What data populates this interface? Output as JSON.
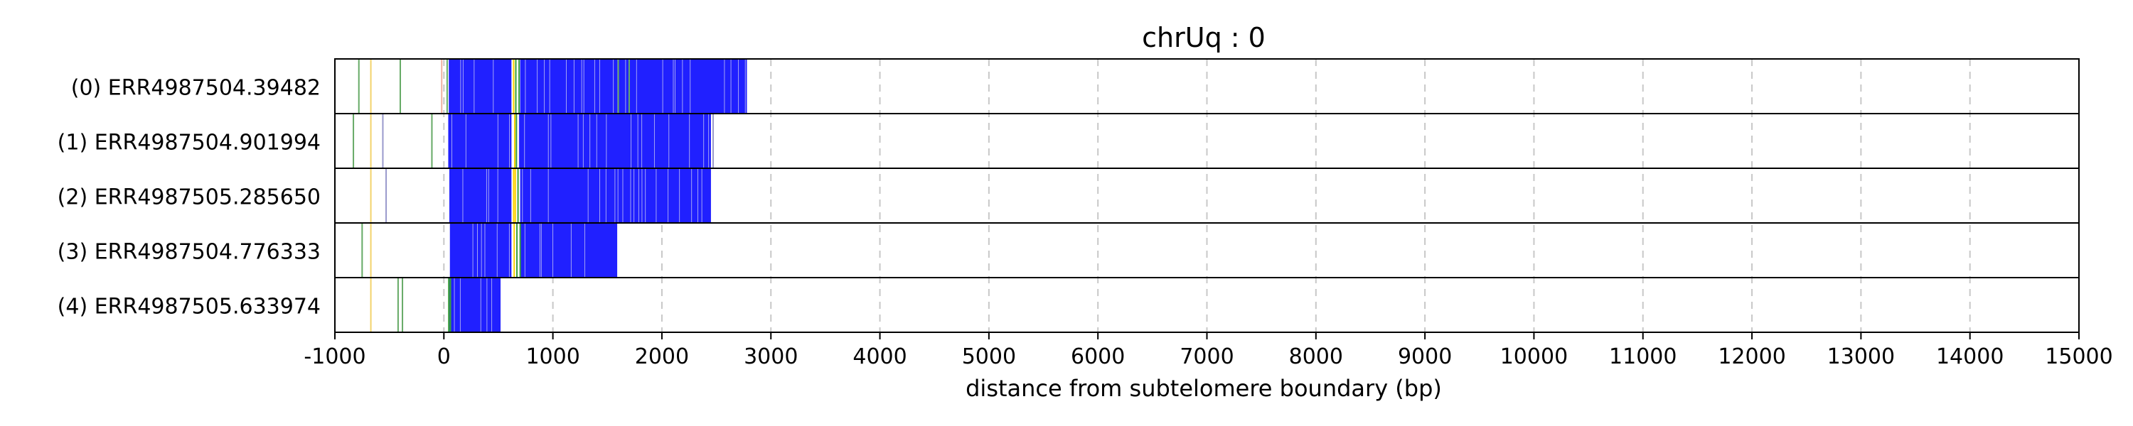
{
  "chart_data": {
    "type": "track-plot",
    "title": "chrUq : 0",
    "xlabel": "distance from subtelomere boundary (bp)",
    "ylabel": "",
    "xlim": [
      -1000,
      15000
    ],
    "xticks": [
      -1000,
      0,
      1000,
      2000,
      3000,
      4000,
      5000,
      6000,
      7000,
      8000,
      9000,
      10000,
      11000,
      12000,
      13000,
      14000,
      15000
    ],
    "grid": "vertical-dashed",
    "tracks": [
      {
        "label": "(0) ERR4987504.39482",
        "dense_start": 45,
        "dense_end": 2780,
        "fill_segments": [
          {
            "start": 45,
            "end": 620,
            "color": "#2020ff"
          },
          {
            "start": 700,
            "end": 2780,
            "color": "#2020ff"
          }
        ],
        "colored_marks": [
          {
            "x": -780,
            "color": "#66aa66"
          },
          {
            "x": -670,
            "color": "#f2d36b"
          },
          {
            "x": -400,
            "color": "#66aa66"
          },
          {
            "x": -20,
            "color": "#f0b0a0"
          },
          {
            "x": 30,
            "color": "#66aa66"
          },
          {
            "x": 640,
            "color": "#ffd000"
          },
          {
            "x": 660,
            "color": "#3aa03a"
          },
          {
            "x": 690,
            "color": "#3aa03a"
          },
          {
            "x": 1600,
            "color": "#66aa66"
          },
          {
            "x": 1700,
            "color": "#66aa66"
          }
        ]
      },
      {
        "label": "(1) ERR4987504.901994",
        "dense_start": 40,
        "dense_end": 2480,
        "fill_segments": [
          {
            "start": 40,
            "end": 620,
            "color": "#2020ff"
          },
          {
            "start": 690,
            "end": 2450,
            "color": "#2020ff"
          }
        ],
        "colored_marks": [
          {
            "x": -830,
            "color": "#66aa66"
          },
          {
            "x": -670,
            "color": "#f2d36b"
          },
          {
            "x": -560,
            "color": "#9999cc"
          },
          {
            "x": -110,
            "color": "#66aa66"
          },
          {
            "x": 650,
            "color": "#ffd000"
          },
          {
            "x": 665,
            "color": "#3aa03a"
          },
          {
            "x": 2470,
            "color": "#9999cc"
          }
        ]
      },
      {
        "label": "(2) ERR4987505.285650",
        "dense_start": 50,
        "dense_end": 2450,
        "fill_segments": [
          {
            "start": 50,
            "end": 620,
            "color": "#2020ff"
          },
          {
            "start": 700,
            "end": 2450,
            "color": "#2020ff"
          }
        ],
        "colored_marks": [
          {
            "x": -670,
            "color": "#f2d36b"
          },
          {
            "x": -530,
            "color": "#9999cc"
          },
          {
            "x": 640,
            "color": "#ffd000"
          },
          {
            "x": 655,
            "color": "#ffd000"
          },
          {
            "x": 680,
            "color": "#3aa03a"
          }
        ]
      },
      {
        "label": "(3) ERR4987504.776333",
        "dense_start": 55,
        "dense_end": 1590,
        "fill_segments": [
          {
            "start": 55,
            "end": 620,
            "color": "#2020ff"
          },
          {
            "start": 700,
            "end": 1590,
            "color": "#2020ff"
          }
        ],
        "colored_marks": [
          {
            "x": -750,
            "color": "#66aa66"
          },
          {
            "x": -670,
            "color": "#f2d36b"
          },
          {
            "x": 645,
            "color": "#ffd000"
          },
          {
            "x": 670,
            "color": "#3aa03a"
          },
          {
            "x": 700,
            "color": "#3aa03a"
          }
        ]
      },
      {
        "label": "(4) ERR4987505.633974",
        "dense_start": 40,
        "dense_end": 520,
        "fill_segments": [
          {
            "start": 40,
            "end": 520,
            "color": "#2020ff"
          }
        ],
        "colored_marks": [
          {
            "x": -670,
            "color": "#f2d36b"
          },
          {
            "x": -420,
            "color": "#66aa66"
          },
          {
            "x": -380,
            "color": "#66aa66"
          },
          {
            "x": 45,
            "color": "#3aa03a"
          },
          {
            "x": 60,
            "color": "#3aa03a"
          }
        ]
      }
    ],
    "colors": {
      "dense": "#2020ff",
      "gap_line": "#d8d8f0",
      "grid": "#c8c8c8",
      "frame": "#000000"
    }
  }
}
